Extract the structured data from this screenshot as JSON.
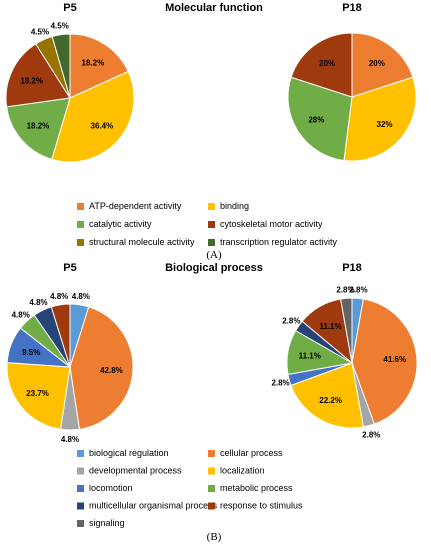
{
  "chart_data": [
    {
      "type": "pie",
      "panel": "(A)",
      "section_title": "Molecular function",
      "charts": [
        {
          "title": "P5",
          "slices": [
            {
              "name": "ATP-dependent activity",
              "value": 18.2,
              "label": "18.2%",
              "color": "#ed7d31"
            },
            {
              "name": "binding",
              "value": 36.4,
              "label": "36.4%",
              "color": "#ffc000"
            },
            {
              "name": "catalytic activity",
              "value": 18.2,
              "label": "18.2%",
              "color": "#70ad47"
            },
            {
              "name": "cytoskeletal motor activity",
              "value": 18.2,
              "label": "18.2%",
              "color": "#9e3a0e"
            },
            {
              "name": "structural molecule activity",
              "value": 4.5,
              "label": "4.5%",
              "color": "#997300"
            },
            {
              "name": "transcription regulator activity",
              "value": 4.5,
              "label": "4.5%",
              "color": "#43682b"
            }
          ]
        },
        {
          "title": "P18",
          "slices": [
            {
              "name": "ATP-dependent activity",
              "value": 20,
              "label": "20%",
              "color": "#ed7d31"
            },
            {
              "name": "binding",
              "value": 32,
              "label": "32%",
              "color": "#ffc000"
            },
            {
              "name": "catalytic activity",
              "value": 28,
              "label": "28%",
              "color": "#70ad47"
            },
            {
              "name": "cytoskeletal motor activity",
              "value": 20,
              "label": "20%",
              "color": "#9e3a0e"
            }
          ]
        }
      ],
      "legend": [
        {
          "name": "ATP-dependent activity",
          "color": "#ed7d31"
        },
        {
          "name": "binding",
          "color": "#ffc000"
        },
        {
          "name": "catalytic activity",
          "color": "#70ad47"
        },
        {
          "name": "cytoskeletal motor activity",
          "color": "#9e3a0e"
        },
        {
          "name": "structural molecule activity",
          "color": "#997300"
        },
        {
          "name": "transcription regulator activity",
          "color": "#43682b"
        }
      ],
      "legend_placement": "bottom"
    },
    {
      "type": "pie",
      "panel": "(B)",
      "section_title": "Biological process",
      "charts": [
        {
          "title": "P5",
          "slices": [
            {
              "name": "biological regulation",
              "value": 4.8,
              "label": "4.8%",
              "color": "#5b9bd5"
            },
            {
              "name": "cellular process",
              "value": 42.8,
              "label": "42.8%",
              "color": "#ed7d31"
            },
            {
              "name": "developmental process",
              "value": 4.8,
              "label": "4.8%",
              "color": "#a5a5a5"
            },
            {
              "name": "localization",
              "value": 23.7,
              "label": "23.7%",
              "color": "#ffc000"
            },
            {
              "name": "locomotion",
              "value": 9.5,
              "label": "9.5%",
              "color": "#4472c4"
            },
            {
              "name": "metabolic process",
              "value": 4.8,
              "label": "4.8%",
              "color": "#70ad47"
            },
            {
              "name": "multicellular organismal process",
              "value": 4.8,
              "label": "4.8%",
              "color": "#264478"
            },
            {
              "name": "response to stimulus",
              "value": 4.8,
              "label": "4.8%",
              "color": "#9e3a0e"
            }
          ]
        },
        {
          "title": "P18",
          "slices": [
            {
              "name": "biological regulation",
              "value": 2.8,
              "label": "2.8%",
              "color": "#5b9bd5"
            },
            {
              "name": "cellular process",
              "value": 41.6,
              "label": "41.6%",
              "color": "#ed7d31"
            },
            {
              "name": "developmental process",
              "value": 2.8,
              "label": "2.8%",
              "color": "#a5a5a5"
            },
            {
              "name": "localization",
              "value": 22.2,
              "label": "22.2%",
              "color": "#ffc000"
            },
            {
              "name": "locomotion",
              "value": 2.8,
              "label": "2.8%",
              "color": "#4472c4"
            },
            {
              "name": "metabolic process",
              "value": 11.1,
              "label": "11.1%",
              "color": "#70ad47"
            },
            {
              "name": "multicellular organismal process",
              "value": 2.8,
              "label": "2.8%",
              "color": "#264478"
            },
            {
              "name": "response to stimulus",
              "value": 11.1,
              "label": "11.1%",
              "color": "#9e3a0e"
            },
            {
              "name": "signaling",
              "value": 2.8,
              "label": "2.8%",
              "color": "#636363"
            }
          ]
        }
      ],
      "legend": [
        {
          "name": "biological regulation",
          "color": "#5b9bd5"
        },
        {
          "name": "cellular process",
          "color": "#ed7d31"
        },
        {
          "name": "developmental process",
          "color": "#a5a5a5"
        },
        {
          "name": "localization",
          "color": "#ffc000"
        },
        {
          "name": "locomotion",
          "color": "#4472c4"
        },
        {
          "name": "metabolic process",
          "color": "#70ad47"
        },
        {
          "name": "multicellular organismal process",
          "color": "#264478"
        },
        {
          "name": "response to stimulus",
          "color": "#9e3a0e"
        },
        {
          "name": "signaling",
          "color": "#636363"
        }
      ],
      "legend_placement": "bottom"
    }
  ]
}
